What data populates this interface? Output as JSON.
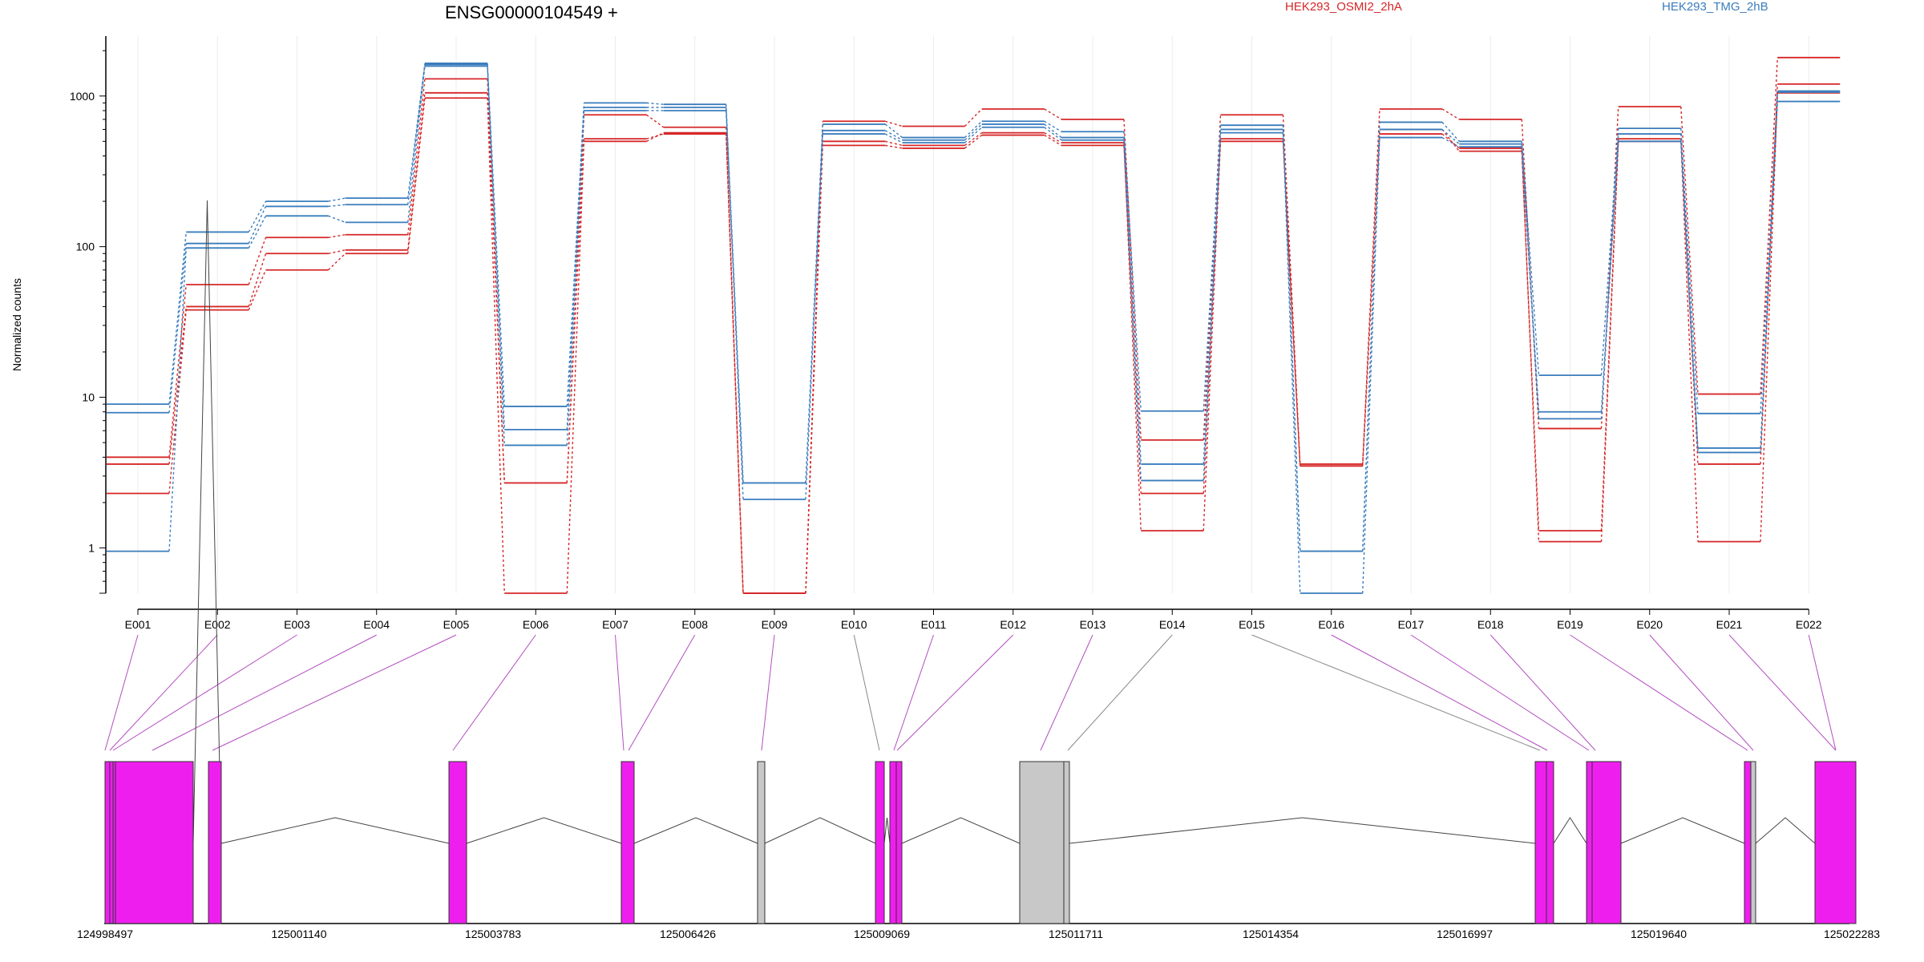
{
  "chart_data": {
    "type": "line",
    "title": "ENSG00000104549 +",
    "ylabel": "Normalized counts",
    "yscale": "log",
    "ylim": [
      0.5,
      2500
    ],
    "yticks": [
      "1",
      "10",
      "100",
      "1000"
    ],
    "yticks_values": [
      1,
      10,
      100,
      1000
    ],
    "categories": [
      "E001",
      "E002",
      "E003",
      "E004",
      "E005",
      "E006",
      "E007",
      "E008",
      "E009",
      "E010",
      "E011",
      "E012",
      "E013",
      "E014",
      "E015",
      "E016",
      "E017",
      "E018",
      "E019",
      "E020",
      "E021",
      "E022"
    ],
    "legend": [
      {
        "name": "HEK293_OSMI2_2hA",
        "color": "#d62728"
      },
      {
        "name": "HEK293_TMG_2hB",
        "color": "#3a7dbd"
      }
    ],
    "series": [
      {
        "group": "HEK293_OSMI2_2hA",
        "color": "#d62728",
        "values": [
          4.0,
          56,
          115,
          120,
          1300,
          2.7,
          750,
          620,
          0.5,
          680,
          630,
          820,
          700,
          5.2,
          750,
          3.6,
          820,
          700,
          6.2,
          850,
          10.5,
          1800
        ]
      },
      {
        "group": "HEK293_OSMI2_2hA",
        "color": "#d62728",
        "values": [
          3.6,
          40,
          90,
          95,
          1050,
          2.7,
          520,
          560,
          0.5,
          500,
          470,
          570,
          490,
          1.3,
          520,
          3.5,
          600,
          430,
          1.3,
          520,
          3.6,
          1200
        ]
      },
      {
        "group": "HEK293_OSMI2_2hA",
        "color": "#d62728",
        "values": [
          2.3,
          38,
          70,
          90,
          970,
          0.5,
          500,
          570,
          0.5,
          470,
          450,
          550,
          470,
          2.3,
          500,
          3.5,
          560,
          450,
          1.1,
          500,
          1.1,
          1050
        ]
      },
      {
        "group": "HEK293_TMG_2hB",
        "color": "#3a7dbd",
        "values": [
          9.0,
          125,
          200,
          210,
          1650,
          8.7,
          900,
          880,
          2.7,
          650,
          530,
          680,
          580,
          8.1,
          640,
          0.95,
          670,
          500,
          14,
          610,
          7.8,
          1080
        ]
      },
      {
        "group": "HEK293_TMG_2hB",
        "color": "#3a7dbd",
        "values": [
          7.9,
          105,
          185,
          190,
          1620,
          6.1,
          840,
          840,
          2.1,
          590,
          510,
          650,
          530,
          3.6,
          600,
          0.95,
          600,
          480,
          8.0,
          560,
          4.6,
          1060
        ]
      },
      {
        "group": "HEK293_TMG_2hB",
        "color": "#3a7dbd",
        "values": [
          0.95,
          98,
          160,
          145,
          1580,
          4.8,
          800,
          800,
          2.7,
          560,
          490,
          620,
          510,
          2.8,
          570,
          0.5,
          530,
          460,
          7.2,
          500,
          4.3,
          920
        ]
      }
    ],
    "gene_model": {
      "coordinate_labels": [
        "124998497",
        "125001140",
        "125003783",
        "125006426",
        "125009069",
        "125011711",
        "125014354",
        "125016997",
        "125019640",
        "125022283"
      ]
    }
  }
}
